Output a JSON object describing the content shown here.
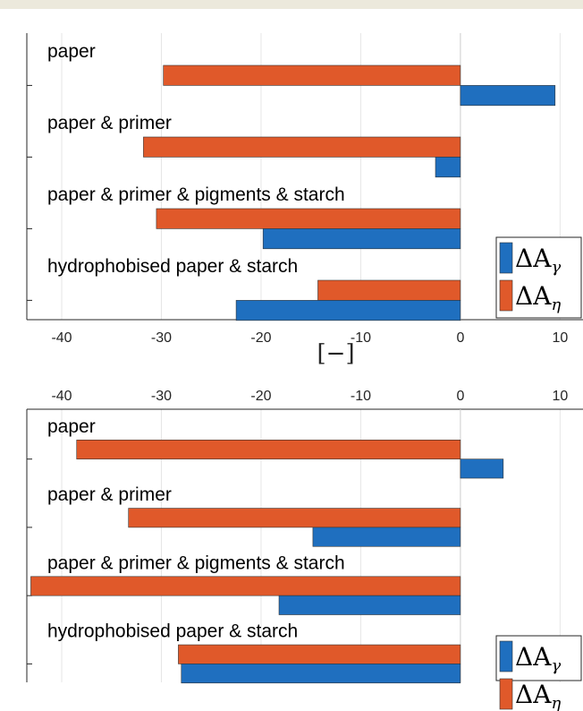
{
  "colors": {
    "gamma": "#1f6fbf",
    "eta": "#e0592a",
    "grid": "#e6e6e6",
    "axis": "#262626"
  },
  "chart_data": [
    {
      "type": "bar",
      "orientation": "horizontal",
      "categories": [
        "paper",
        "paper & primer",
        "paper & primer & pigments & starch",
        "hydrophobised paper & starch"
      ],
      "series": [
        {
          "name": "ΔAγ",
          "symbol": "ΔA",
          "subscript": "γ",
          "values": [
            9.5,
            -2.5,
            -19.8,
            -22.5
          ]
        },
        {
          "name": "ΔAη",
          "symbol": "ΔA",
          "subscript": "η",
          "values": [
            -29.8,
            -31.8,
            -30.5,
            -14.3
          ]
        }
      ],
      "xlim": [
        -43.5,
        12.3
      ],
      "xticks": [
        "-40",
        "-30",
        "-20",
        "-10",
        "0",
        "10"
      ],
      "xaxis_location": "bottom",
      "xlabel": "[−]",
      "grid": true,
      "legend_position": "bottom-right"
    },
    {
      "type": "bar",
      "orientation": "horizontal",
      "categories": [
        "paper",
        "paper & primer",
        "paper & primer & pigments & starch",
        "hydrophobised paper & starch"
      ],
      "series": [
        {
          "name": "ΔAγ",
          "symbol": "ΔA",
          "subscript": "γ",
          "values": [
            4.3,
            -14.8,
            -18.2,
            -28.0
          ]
        },
        {
          "name": "ΔAη",
          "symbol": "ΔA",
          "subscript": "η",
          "values": [
            -38.5,
            -33.3,
            -43.1,
            -28.3
          ]
        }
      ],
      "xlim": [
        -43.5,
        12.3
      ],
      "xticks": [
        "-40",
        "-30",
        "-20",
        "-10",
        "0",
        "10"
      ],
      "xaxis_location": "top",
      "xlabel": "",
      "grid": true,
      "legend_position": "bottom-right"
    }
  ]
}
